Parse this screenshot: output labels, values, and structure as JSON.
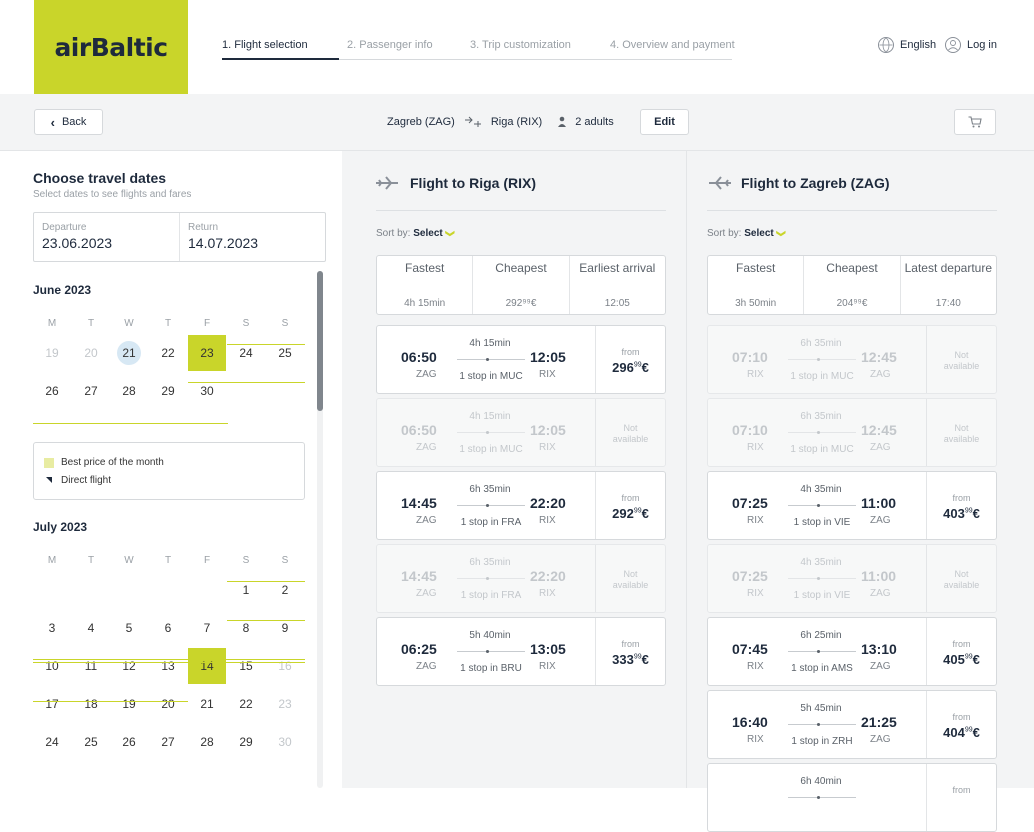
{
  "brand": {
    "logo": "airBaltic",
    "accent": "#c9d52a",
    "navy": "#1e2a3c"
  },
  "steps": [
    "1. Flight selection",
    "2. Passenger info",
    "3. Trip customization",
    "4. Overview and payment"
  ],
  "header": {
    "language": "English",
    "login": "Log in"
  },
  "subbar": {
    "back": "Back",
    "origin": "Zagreb (ZAG)",
    "destination": "Riga (RIX)",
    "passengers": "2 adults",
    "edit": "Edit"
  },
  "calendar": {
    "title": "Choose travel dates",
    "subtitle": "Select dates to see flights and fares",
    "departure_label": "Departure",
    "departure_value": "23.06.2023",
    "return_label": "Return",
    "return_value": "14.07.2023",
    "weekdays": [
      "M",
      "T",
      "W",
      "T",
      "F",
      "S",
      "S"
    ],
    "legend_best": "Best price of the month",
    "legend_direct": "Direct flight",
    "months": [
      {
        "name": "June 2023",
        "rows": [
          [
            {
              "d": "19",
              "dim": true
            },
            {
              "d": "20",
              "dim": true
            },
            {
              "d": "21",
              "today": true
            },
            {
              "d": "22"
            },
            {
              "d": "23",
              "best": true
            },
            {
              "d": "24"
            },
            {
              "d": "25"
            }
          ],
          [
            {
              "d": "26"
            },
            {
              "d": "27"
            },
            {
              "d": "28"
            },
            {
              "d": "29"
            },
            {
              "d": "30"
            }
          ]
        ]
      },
      {
        "name": "July 2023",
        "rows": [
          [
            null,
            null,
            null,
            null,
            null,
            {
              "d": "1"
            },
            {
              "d": "2"
            }
          ],
          [
            {
              "d": "3"
            },
            {
              "d": "4"
            },
            {
              "d": "5"
            },
            {
              "d": "6"
            },
            {
              "d": "7"
            },
            {
              "d": "8"
            },
            {
              "d": "9"
            }
          ],
          [
            {
              "d": "10"
            },
            {
              "d": "11"
            },
            {
              "d": "12"
            },
            {
              "d": "13"
            },
            {
              "d": "14",
              "best": true
            },
            {
              "d": "15"
            },
            {
              "d": "16",
              "dim": true
            }
          ],
          [
            {
              "d": "17"
            },
            {
              "d": "18"
            },
            {
              "d": "19"
            },
            {
              "d": "20"
            },
            {
              "d": "21"
            },
            {
              "d": "22"
            },
            {
              "d": "23",
              "dim": true
            }
          ],
          [
            {
              "d": "24"
            },
            {
              "d": "25"
            },
            {
              "d": "26"
            },
            {
              "d": "27"
            },
            {
              "d": "28"
            },
            {
              "d": "29"
            },
            {
              "d": "30",
              "dim": true
            }
          ]
        ]
      }
    ]
  },
  "outbound": {
    "title": "Flight to Riga (RIX)",
    "sort_label": "Sort by:",
    "sort_value": "Select",
    "sort_options": [
      {
        "label": "Fastest",
        "value": "4h 15min"
      },
      {
        "label": "Cheapest",
        "value": "292⁹⁹€"
      },
      {
        "label": "Earliest arrival",
        "value": "12:05"
      }
    ],
    "flights": [
      {
        "dep": "06:50",
        "arr": "12:05",
        "from": "ZAG",
        "to": "RIX",
        "dur": "4h 15min",
        "stop": "1 stop in MUC",
        "avail": true,
        "price_int": "296",
        "price_dec": "99",
        "price_cur": "€",
        "from_label": "from"
      },
      {
        "dep": "06:50",
        "arr": "12:05",
        "from": "ZAG",
        "to": "RIX",
        "dur": "4h 15min",
        "stop": "1 stop in MUC",
        "avail": false,
        "na": "Not available"
      },
      {
        "dep": "14:45",
        "arr": "22:20",
        "from": "ZAG",
        "to": "RIX",
        "dur": "6h 35min",
        "stop": "1 stop in FRA",
        "avail": true,
        "price_int": "292",
        "price_dec": "99",
        "price_cur": "€",
        "from_label": "from"
      },
      {
        "dep": "14:45",
        "arr": "22:20",
        "from": "ZAG",
        "to": "RIX",
        "dur": "6h 35min",
        "stop": "1 stop in FRA",
        "avail": false,
        "na": "Not available"
      },
      {
        "dep": "06:25",
        "arr": "13:05",
        "from": "ZAG",
        "to": "RIX",
        "dur": "5h 40min",
        "stop": "1 stop in BRU",
        "avail": true,
        "price_int": "333",
        "price_dec": "99",
        "price_cur": "€",
        "from_label": "from"
      }
    ]
  },
  "inbound": {
    "title": "Flight to Zagreb (ZAG)",
    "sort_label": "Sort by:",
    "sort_value": "Select",
    "sort_options": [
      {
        "label": "Fastest",
        "value": "3h 50min"
      },
      {
        "label": "Cheapest",
        "value": "204⁹⁹€"
      },
      {
        "label": "Latest departure",
        "value": "17:40"
      }
    ],
    "flights": [
      {
        "dep": "07:10",
        "arr": "12:45",
        "from": "RIX",
        "to": "ZAG",
        "dur": "6h 35min",
        "stop": "1 stop in MUC",
        "avail": false,
        "na": "Not available"
      },
      {
        "dep": "07:10",
        "arr": "12:45",
        "from": "RIX",
        "to": "ZAG",
        "dur": "6h 35min",
        "stop": "1 stop in MUC",
        "avail": false,
        "na": "Not available"
      },
      {
        "dep": "07:25",
        "arr": "11:00",
        "from": "RIX",
        "to": "ZAG",
        "dur": "4h 35min",
        "stop": "1 stop in VIE",
        "avail": true,
        "price_int": "403",
        "price_dec": "99",
        "price_cur": "€",
        "from_label": "from"
      },
      {
        "dep": "07:25",
        "arr": "11:00",
        "from": "RIX",
        "to": "ZAG",
        "dur": "4h 35min",
        "stop": "1 stop in VIE",
        "avail": false,
        "na": "Not available"
      },
      {
        "dep": "07:45",
        "arr": "13:10",
        "from": "RIX",
        "to": "ZAG",
        "dur": "6h 25min",
        "stop": "1 stop in AMS",
        "avail": true,
        "price_int": "405",
        "price_dec": "99",
        "price_cur": "€",
        "from_label": "from"
      },
      {
        "dep": "16:40",
        "arr": "21:25",
        "from": "RIX",
        "to": "ZAG",
        "dur": "5h 45min",
        "stop": "1 stop in ZRH",
        "avail": true,
        "price_int": "404",
        "price_dec": "99",
        "price_cur": "€",
        "from_label": "from"
      },
      {
        "dep": "",
        "arr": "",
        "from": "",
        "to": "",
        "dur": "6h 40min",
        "stop": "",
        "avail": true,
        "price_int": "",
        "price_dec": "",
        "price_cur": "",
        "from_label": "from"
      }
    ]
  }
}
